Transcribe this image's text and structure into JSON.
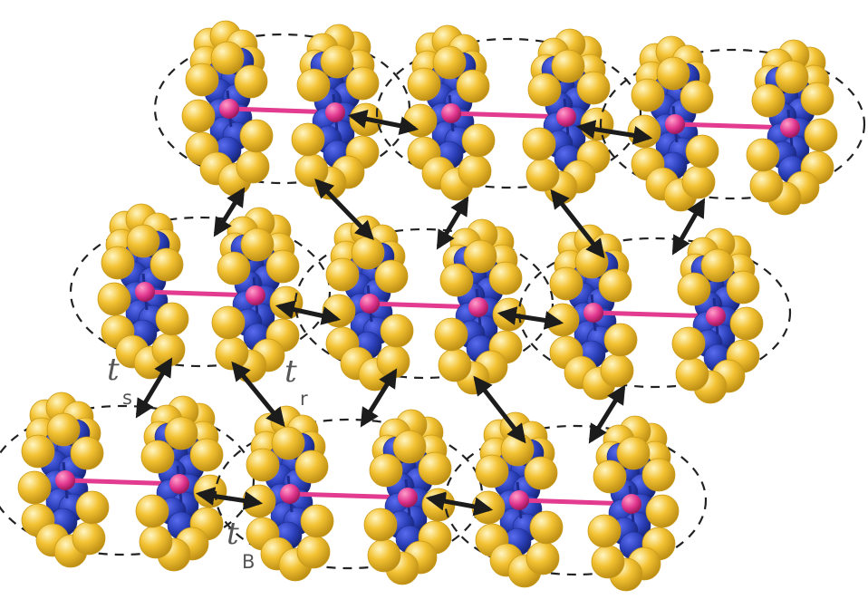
{
  "figure": {
    "labels": {
      "ts": {
        "main": "t",
        "sub": "s"
      },
      "tr": {
        "main": "t",
        "sub": "r"
      },
      "tB": {
        "main": "t",
        "sub": "B"
      }
    },
    "colors": {
      "ring": "#2a3fb8",
      "ring_dark": "#1d2c8c",
      "sulfur": "#f3c232",
      "sulfur_edge": "#c99a1a",
      "metal": "#e0358e",
      "bond": "#e23b8f",
      "ellipse": "#222222",
      "arrow": "#1c1c1c",
      "label": "#555555",
      "background": "#ffffff"
    },
    "layers": [
      {
        "row": "top",
        "dimers": 3
      },
      {
        "row": "middle",
        "dimers": 3
      },
      {
        "row": "bottom",
        "dimers": 3
      }
    ],
    "interactions": [
      "t_s",
      "t_r",
      "t_B"
    ]
  }
}
